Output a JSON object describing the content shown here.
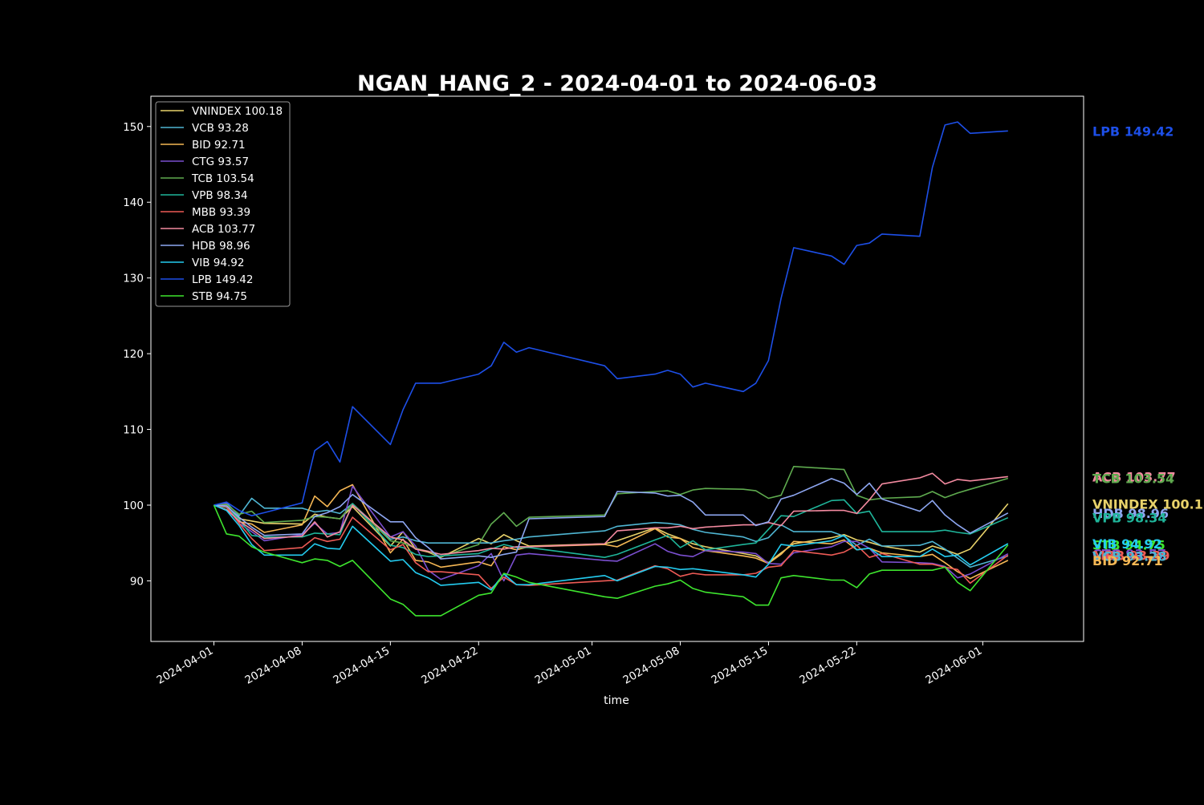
{
  "chart_data": {
    "type": "line",
    "title": "NGAN_HANG_2 - 2024-04-01 to 2024-06-03",
    "xlabel": "time",
    "ylabel": "",
    "xlim": [
      "2024-03-27",
      "2024-06-09"
    ],
    "ylim": [
      82,
      154
    ],
    "x_ticks": [
      "2024-04-01",
      "2024-04-08",
      "2024-04-15",
      "2024-04-22",
      "2024-05-01",
      "2024-05-08",
      "2024-05-15",
      "2024-05-22",
      "2024-06-01"
    ],
    "y_ticks": [
      90,
      100,
      110,
      120,
      130,
      140,
      150
    ],
    "grid": false,
    "legend_position": "top-left",
    "background": "#000000",
    "x": [
      "2024-04-01",
      "2024-04-02",
      "2024-04-03",
      "2024-04-04",
      "2024-04-05",
      "2024-04-08",
      "2024-04-09",
      "2024-04-10",
      "2024-04-11",
      "2024-04-12",
      "2024-04-15",
      "2024-04-16",
      "2024-04-17",
      "2024-04-18",
      "2024-04-19",
      "2024-04-22",
      "2024-04-23",
      "2024-04-24",
      "2024-04-25",
      "2024-04-26",
      "2024-05-02",
      "2024-05-03",
      "2024-05-06",
      "2024-05-07",
      "2024-05-08",
      "2024-05-09",
      "2024-05-10",
      "2024-05-13",
      "2024-05-14",
      "2024-05-15",
      "2024-05-16",
      "2024-05-17",
      "2024-05-20",
      "2024-05-21",
      "2024-05-22",
      "2024-05-23",
      "2024-05-24",
      "2024-05-27",
      "2024-05-28",
      "2024-05-29",
      "2024-05-30",
      "2024-05-31",
      "2024-06-03"
    ],
    "series": [
      {
        "name": "VNINDEX",
        "label": "VNINDEX 100.18",
        "color": "#e8d26a",
        "values": [
          100,
          99.8,
          98.2,
          97.9,
          97.6,
          97.5,
          98.8,
          98.4,
          98.2,
          99.8,
          94.6,
          96.5,
          94.2,
          93.8,
          93.1,
          95.6,
          94.9,
          96.1,
          95.3,
          94.6,
          94.9,
          95.3,
          97.0,
          96.2,
          95.6,
          94.9,
          94.5,
          93.6,
          93.3,
          92.4,
          93.7,
          94.9,
          95.7,
          96.1,
          95.4,
          95.1,
          94.6,
          93.8,
          94.6,
          94.1,
          93.5,
          94.2,
          100.18
        ]
      },
      {
        "name": "VCB",
        "label": "VCB 93.28",
        "color": "#4fb6d3",
        "values": [
          100,
          100.3,
          98.6,
          100.9,
          99.6,
          99.6,
          99.1,
          99.3,
          98.9,
          100.2,
          95.5,
          95.8,
          95.3,
          95.0,
          95.0,
          95.0,
          95.0,
          95.3,
          95.5,
          95.8,
          96.6,
          97.2,
          97.7,
          97.6,
          97.4,
          96.8,
          96.4,
          95.8,
          95.2,
          95.7,
          97.4,
          96.5,
          96.5,
          95.9,
          94.7,
          95.5,
          94.6,
          94.7,
          95.2,
          94.2,
          93.0,
          91.8,
          93.28
        ]
      },
      {
        "name": "BID",
        "label": "BID 92.71",
        "color": "#f5b754",
        "values": [
          100,
          99.7,
          97.8,
          97.5,
          96.4,
          97.4,
          101.2,
          99.8,
          101.9,
          102.7,
          93.7,
          95.5,
          92.7,
          92.5,
          91.8,
          92.5,
          92.0,
          94.5,
          94.1,
          94.5,
          94.8,
          94.5,
          96.9,
          95.8,
          95.6,
          94.4,
          94.0,
          93.3,
          93.0,
          92.3,
          93.5,
          95.2,
          94.9,
          95.4,
          94.1,
          94.3,
          93.7,
          93.2,
          93.5,
          92.4,
          91.2,
          90.3,
          92.71
        ]
      },
      {
        "name": "CTG",
        "label": "CTG 93.57",
        "color": "#7b4fd0",
        "values": [
          100,
          100.2,
          97.6,
          96.5,
          95.3,
          96.1,
          97.6,
          96.2,
          96.4,
          102.5,
          95.8,
          96.5,
          94.6,
          91.4,
          90.2,
          92.0,
          93.6,
          90.0,
          93.4,
          93.6,
          92.7,
          92.6,
          94.9,
          93.9,
          93.4,
          93.2,
          94.0,
          93.8,
          93.6,
          92.3,
          92.2,
          93.7,
          94.5,
          95.2,
          95.2,
          94.3,
          92.5,
          92.4,
          92.3,
          91.9,
          90.4,
          90.9,
          93.57
        ]
      },
      {
        "name": "TCB",
        "label": "TCB 103.54",
        "color": "#5fab4f",
        "values": [
          100,
          100.1,
          98.8,
          99.2,
          97.7,
          98.0,
          98.5,
          98.4,
          98.2,
          100.2,
          95.3,
          95.0,
          94.3,
          93.9,
          93.2,
          94.8,
          97.5,
          99.0,
          97.2,
          98.4,
          98.7,
          101.5,
          101.8,
          101.9,
          101.4,
          102.0,
          102.2,
          102.1,
          101.9,
          100.9,
          101.3,
          105.1,
          104.8,
          104.7,
          101.3,
          100.7,
          100.9,
          101.1,
          101.8,
          101.0,
          101.6,
          102.1,
          103.54
        ]
      },
      {
        "name": "VPB",
        "label": "VPB 98.34",
        "color": "#1fb59a",
        "values": [
          100,
          99.7,
          98.1,
          96.0,
          95.8,
          95.8,
          96.3,
          96.2,
          96.1,
          100.2,
          94.7,
          94.4,
          93.5,
          93.2,
          93.3,
          93.6,
          94.2,
          94.8,
          94.4,
          94.4,
          93.1,
          93.5,
          95.4,
          96.0,
          94.4,
          95.3,
          94.1,
          94.8,
          95.0,
          96.8,
          98.6,
          98.5,
          100.6,
          100.7,
          98.9,
          99.2,
          96.5,
          96.5,
          96.5,
          96.7,
          96.4,
          96.2,
          98.34
        ]
      },
      {
        "name": "MBB",
        "label": "MBB 93.39",
        "color": "#ee5b56",
        "values": [
          100,
          99.8,
          97.6,
          95.6,
          94.0,
          94.4,
          95.7,
          95.2,
          95.5,
          98.4,
          94.1,
          94.8,
          92.4,
          91.2,
          91.2,
          90.8,
          89.0,
          90.5,
          89.5,
          89.4,
          90.0,
          90.1,
          92.0,
          91.6,
          90.6,
          91.0,
          90.8,
          90.8,
          91.0,
          91.8,
          92.0,
          94.0,
          93.4,
          93.8,
          94.7,
          93.1,
          93.6,
          92.2,
          92.2,
          91.8,
          91.5,
          89.7,
          93.39
        ]
      },
      {
        "name": "ACB",
        "label": "ACB 103.77",
        "color": "#f38aa0",
        "values": [
          100,
          99.4,
          97.9,
          96.8,
          95.6,
          95.9,
          97.8,
          95.8,
          96.5,
          100.0,
          95.8,
          95.4,
          94.2,
          93.9,
          93.5,
          94.0,
          94.3,
          94.2,
          94.5,
          94.5,
          94.9,
          96.6,
          97.0,
          97.0,
          97.2,
          96.9,
          97.1,
          97.4,
          97.4,
          97.7,
          97.3,
          99.2,
          99.3,
          99.3,
          98.9,
          100.7,
          102.8,
          103.6,
          104.2,
          102.8,
          103.4,
          103.2,
          103.77
        ]
      },
      {
        "name": "HDB",
        "label": "HDB 98.96",
        "color": "#8ea7f2",
        "values": [
          100,
          99.9,
          98.4,
          97.1,
          96.0,
          96.2,
          98.5,
          99.0,
          99.8,
          101.4,
          97.8,
          97.8,
          95.7,
          94.4,
          92.9,
          93.3,
          93.1,
          93.5,
          93.8,
          98.2,
          98.5,
          101.8,
          101.6,
          101.2,
          101.3,
          100.4,
          98.7,
          98.7,
          97.3,
          97.8,
          100.8,
          101.3,
          103.5,
          102.9,
          101.4,
          102.9,
          100.8,
          99.2,
          100.6,
          98.7,
          97.4,
          96.3,
          98.96
        ]
      },
      {
        "name": "VIB",
        "label": "VIB 94.92",
        "color": "#24ccf0",
        "values": [
          100,
          99.3,
          97.3,
          94.8,
          93.4,
          93.4,
          94.9,
          94.3,
          94.2,
          97.2,
          92.6,
          92.8,
          91.1,
          90.4,
          89.4,
          89.8,
          88.8,
          90.9,
          89.5,
          89.5,
          90.7,
          90.0,
          91.9,
          91.8,
          91.5,
          91.6,
          91.4,
          90.8,
          90.5,
          92.2,
          94.8,
          94.6,
          95.3,
          96.0,
          94.1,
          94.3,
          93.2,
          93.2,
          94.2,
          93.2,
          93.4,
          92.1,
          94.92
        ]
      },
      {
        "name": "LPB",
        "label": "LPB 149.42",
        "color": "#1d4fe8",
        "values": [
          100,
          100.4,
          99.3,
          98.6,
          99.0,
          100.3,
          107.2,
          108.4,
          105.7,
          113.0,
          108.0,
          112.6,
          116.1,
          116.1,
          116.1,
          117.3,
          118.4,
          121.5,
          120.2,
          120.8,
          118.4,
          116.7,
          117.3,
          117.8,
          117.3,
          115.6,
          116.1,
          115.0,
          116.1,
          119.1,
          127.3,
          134.0,
          132.9,
          131.8,
          134.3,
          134.6,
          135.8,
          135.5,
          144.6,
          150.2,
          150.6,
          149.1,
          149.42
        ]
      },
      {
        "name": "STB",
        "label": "STB 94.75",
        "color": "#3ee52e",
        "values": [
          100,
          96.2,
          95.9,
          94.5,
          93.8,
          92.4,
          92.9,
          92.7,
          91.9,
          92.7,
          87.6,
          86.9,
          85.4,
          85.4,
          85.4,
          88.1,
          88.4,
          91.0,
          90.5,
          89.8,
          87.9,
          87.7,
          89.3,
          89.6,
          90.1,
          89.0,
          88.5,
          87.9,
          86.8,
          86.8,
          90.4,
          90.7,
          90.1,
          90.1,
          89.1,
          90.9,
          91.4,
          91.4,
          91.4,
          91.8,
          89.8,
          88.7,
          94.75
        ]
      }
    ],
    "end_labels": [
      {
        "text": "LPB 149.42",
        "color": "#1d4fe8",
        "y": 149.42
      },
      {
        "text": "ACB 103.77",
        "color": "#f38aa0",
        "y": 103.77
      },
      {
        "text": "TCB 103.54",
        "color": "#5fab4f",
        "y": 103.54
      },
      {
        "text": "VNINDEX 100.18",
        "color": "#e8d26a",
        "y": 100.18
      },
      {
        "text": "HDB 98.96",
        "color": "#8ea7f2",
        "y": 98.96
      },
      {
        "text": "VPB 98.34",
        "color": "#1fb59a",
        "y": 98.34
      },
      {
        "text": "STB 94.75",
        "color": "#3ee52e",
        "y": 94.75
      },
      {
        "text": "VIB 94.92",
        "color": "#24ccf0",
        "y": 94.92
      },
      {
        "text": "CTG 93.57",
        "color": "#7b4fd0",
        "y": 93.57
      },
      {
        "text": "MBB 93.39",
        "color": "#ee5b56",
        "y": 93.39
      },
      {
        "text": "VCB 93.28",
        "color": "#4fb6d3",
        "y": 93.28
      },
      {
        "text": "BID 92.71",
        "color": "#f5b754",
        "y": 92.71
      }
    ]
  }
}
